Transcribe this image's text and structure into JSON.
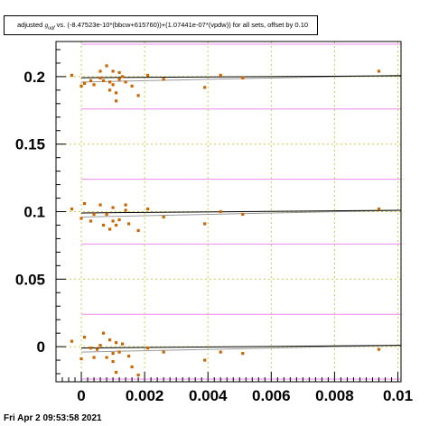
{
  "title": {
    "prefix": "adjusted ",
    "symbol": "g",
    "subscript": "uqf",
    "suffix": " vs. (-8.47523e-10*(bbcw+615760))+(1.07441e-07*(vpdw)) for all sets, offset by 0.10"
  },
  "footer": "Fri Apr  2 09:53:58 2021",
  "colors": {
    "points": "#cc6600",
    "fit_line": "#000000",
    "trend_line": "#999999",
    "band_line": "#ee88ee",
    "grid": "#cccc44"
  },
  "chart_data": {
    "type": "scatter",
    "xlim": [
      -0.0008,
      0.0101
    ],
    "ylim": [
      -0.026,
      0.226
    ],
    "x_ticks": [
      {
        "v": 0,
        "label": "0"
      },
      {
        "v": 0.002,
        "label": "0.002"
      },
      {
        "v": 0.004,
        "label": "0.004"
      },
      {
        "v": 0.006,
        "label": "0.006"
      },
      {
        "v": 0.008,
        "label": "0.008"
      },
      {
        "v": 0.01,
        "label": "0.01"
      }
    ],
    "y_ticks": [
      {
        "v": 0,
        "label": "0"
      },
      {
        "v": 0.05,
        "label": "0.05"
      },
      {
        "v": 0.1,
        "label": "0.1"
      },
      {
        "v": 0.15,
        "label": "0.15"
      },
      {
        "v": 0.2,
        "label": "0.2"
      }
    ],
    "grid": true,
    "series": [
      {
        "offset": 0.2,
        "fit": [
          [
            0.0,
            0.1992
          ],
          [
            0.0101,
            0.2006
          ]
        ],
        "trend": [
          [
            0.0,
            0.196
          ],
          [
            0.0101,
            0.201
          ]
        ],
        "band": [
          0.176,
          0.224
        ],
        "points": [
          [
            -0.0003,
            0.201
          ],
          [
            0.0,
            0.193
          ],
          [
            0.0001,
            0.195
          ],
          [
            0.0003,
            0.197
          ],
          [
            0.0004,
            0.194
          ],
          [
            0.0006,
            0.204
          ],
          [
            0.0006,
            0.199
          ],
          [
            0.0007,
            0.197
          ],
          [
            0.0008,
            0.208
          ],
          [
            0.0009,
            0.196
          ],
          [
            0.0009,
            0.19
          ],
          [
            0.001,
            0.204
          ],
          [
            0.001,
            0.194
          ],
          [
            0.0011,
            0.188
          ],
          [
            0.0011,
            0.182
          ],
          [
            0.0012,
            0.198
          ],
          [
            0.0012,
            0.203
          ],
          [
            0.0013,
            0.2
          ],
          [
            0.0014,
            0.196
          ],
          [
            0.0016,
            0.193
          ],
          [
            0.0018,
            0.186
          ],
          [
            0.0021,
            0.201
          ],
          [
            0.0026,
            0.198
          ],
          [
            0.0039,
            0.192
          ],
          [
            0.0044,
            0.201
          ],
          [
            0.0051,
            0.199
          ],
          [
            0.0094,
            0.204
          ]
        ]
      },
      {
        "offset": 0.1,
        "fit": [
          [
            0.0,
            0.099
          ],
          [
            0.0101,
            0.101
          ]
        ],
        "trend": [
          [
            0.0,
            0.096
          ],
          [
            0.0101,
            0.101
          ]
        ],
        "band": [
          0.076,
          0.124
        ],
        "points": [
          [
            -0.0003,
            0.102
          ],
          [
            0.0,
            0.095
          ],
          [
            0.0001,
            0.106
          ],
          [
            0.0003,
            0.093
          ],
          [
            0.0004,
            0.098
          ],
          [
            0.0006,
            0.105
          ],
          [
            0.0007,
            0.09
          ],
          [
            0.0008,
            0.098
          ],
          [
            0.0009,
            0.087
          ],
          [
            0.001,
            0.103
          ],
          [
            0.001,
            0.093
          ],
          [
            0.0011,
            0.09
          ],
          [
            0.0012,
            0.094
          ],
          [
            0.0014,
            0.105
          ],
          [
            0.0014,
            0.101
          ],
          [
            0.0015,
            0.091
          ],
          [
            0.0018,
            0.086
          ],
          [
            0.0021,
            0.102
          ],
          [
            0.0026,
            0.096
          ],
          [
            0.0039,
            0.091
          ],
          [
            0.0044,
            0.1
          ],
          [
            0.0051,
            0.098
          ],
          [
            0.0094,
            0.102
          ]
        ]
      },
      {
        "offset": 0.0,
        "fit": [
          [
            0.0,
            -0.001
          ],
          [
            0.0101,
            0.001
          ]
        ],
        "trend": [
          [
            0.0,
            -0.004
          ],
          [
            0.0101,
            0.001
          ]
        ],
        "band": [
          -0.024,
          0.024
        ],
        "points": [
          [
            -0.0003,
            0.004
          ],
          [
            0.0,
            -0.009
          ],
          [
            0.0001,
            0.007
          ],
          [
            0.0003,
            -0.001
          ],
          [
            0.0004,
            -0.008
          ],
          [
            0.0005,
            -0.002
          ],
          [
            0.0006,
            0.001
          ],
          [
            0.0007,
            0.01
          ],
          [
            0.0008,
            -0.008
          ],
          [
            0.0009,
            0.005
          ],
          [
            0.001,
            -0.005
          ],
          [
            0.001,
            -0.011
          ],
          [
            0.0011,
            0.003
          ],
          [
            0.0011,
            -0.019
          ],
          [
            0.0012,
            -0.004
          ],
          [
            0.0013,
            0.002
          ],
          [
            0.0015,
            -0.007
          ],
          [
            0.0016,
            -0.015
          ],
          [
            0.0018,
            -0.021
          ],
          [
            0.0021,
            -0.001
          ],
          [
            0.0026,
            -0.004
          ],
          [
            0.0039,
            -0.01
          ],
          [
            0.0044,
            -0.004
          ],
          [
            0.0051,
            -0.005
          ],
          [
            0.0094,
            -0.002
          ]
        ]
      }
    ]
  }
}
